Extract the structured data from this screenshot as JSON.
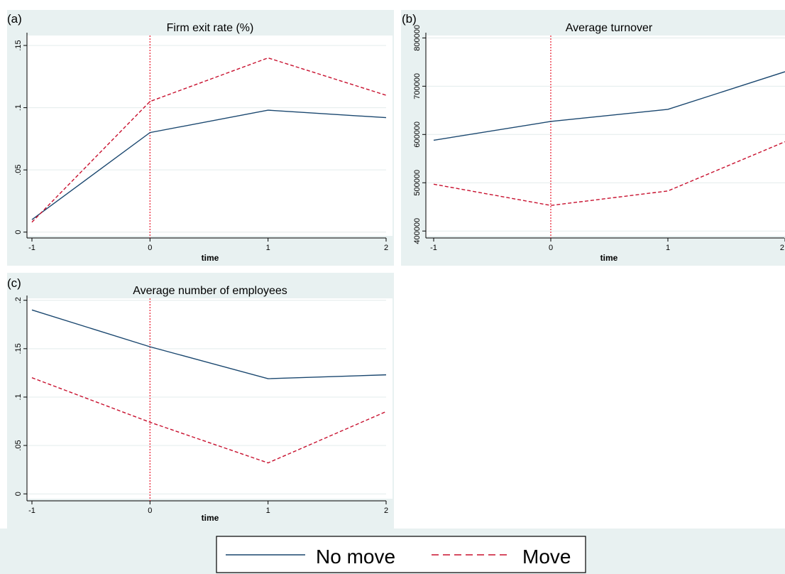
{
  "chart_data": [
    {
      "type": "line",
      "panel_label": "(a)",
      "title": "Firm exit rate (%)",
      "xlabel": "time",
      "ylabel": "",
      "x": [
        -1,
        0,
        1,
        2
      ],
      "xticks": [
        "-1",
        "0",
        "1",
        "2"
      ],
      "yticks": [
        0,
        0.05,
        0.1,
        0.15
      ],
      "ytick_labels": [
        "0",
        ".05",
        ".1",
        ".15"
      ],
      "ylim": [
        -0.003,
        0.158
      ],
      "vline_x": 0,
      "grid": true,
      "series": [
        {
          "name": "No move",
          "values": [
            0.01,
            0.08,
            0.098,
            0.092
          ]
        },
        {
          "name": "Move",
          "values": [
            0.008,
            0.105,
            0.14,
            0.11
          ]
        }
      ]
    },
    {
      "type": "line",
      "panel_label": "(b)",
      "title": "Average turnover",
      "xlabel": "time",
      "ylabel": "",
      "x": [
        -1,
        0,
        1,
        2
      ],
      "xticks": [
        "-1",
        "0",
        "1",
        "2"
      ],
      "yticks": [
        400000,
        500000,
        600000,
        700000,
        800000
      ],
      "ytick_labels": [
        "400000",
        "500000",
        "600000",
        "700000",
        "800000"
      ],
      "ylim": [
        390000,
        805000
      ],
      "vline_x": 0,
      "grid": true,
      "series": [
        {
          "name": "No move",
          "values": [
            588000,
            627000,
            652000,
            730000
          ]
        },
        {
          "name": "Move",
          "values": [
            497000,
            453000,
            483000,
            585000
          ]
        }
      ]
    },
    {
      "type": "line",
      "panel_label": "(c)",
      "title": "Average number of employees",
      "xlabel": "time",
      "ylabel": "",
      "x": [
        -1,
        0,
        1,
        2
      ],
      "xticks": [
        "-1",
        "0",
        "1",
        "2"
      ],
      "yticks": [
        0,
        0.05,
        0.1,
        0.15,
        0.2
      ],
      "ytick_labels": [
        "0",
        ".05",
        ".1",
        ".15",
        ".2"
      ],
      "ylim": [
        -0.005,
        0.202
      ],
      "vline_x": 0,
      "grid": true,
      "series": [
        {
          "name": "No move",
          "values": [
            0.19,
            0.152,
            0.119,
            0.123
          ]
        },
        {
          "name": "Move",
          "values": [
            0.12,
            0.074,
            0.032,
            0.085
          ]
        }
      ]
    }
  ],
  "legend": {
    "placement": "bottom-center",
    "items": [
      {
        "label": "No move",
        "style": "solid",
        "color": "#1a476f"
      },
      {
        "label": "Move",
        "style": "dashed",
        "color": "#c8102e"
      }
    ]
  },
  "colors": {
    "panel_background": "#e8f1f1",
    "no_move": "#1a476f",
    "move": "#c8102e",
    "reference_line": "#e8192c"
  }
}
